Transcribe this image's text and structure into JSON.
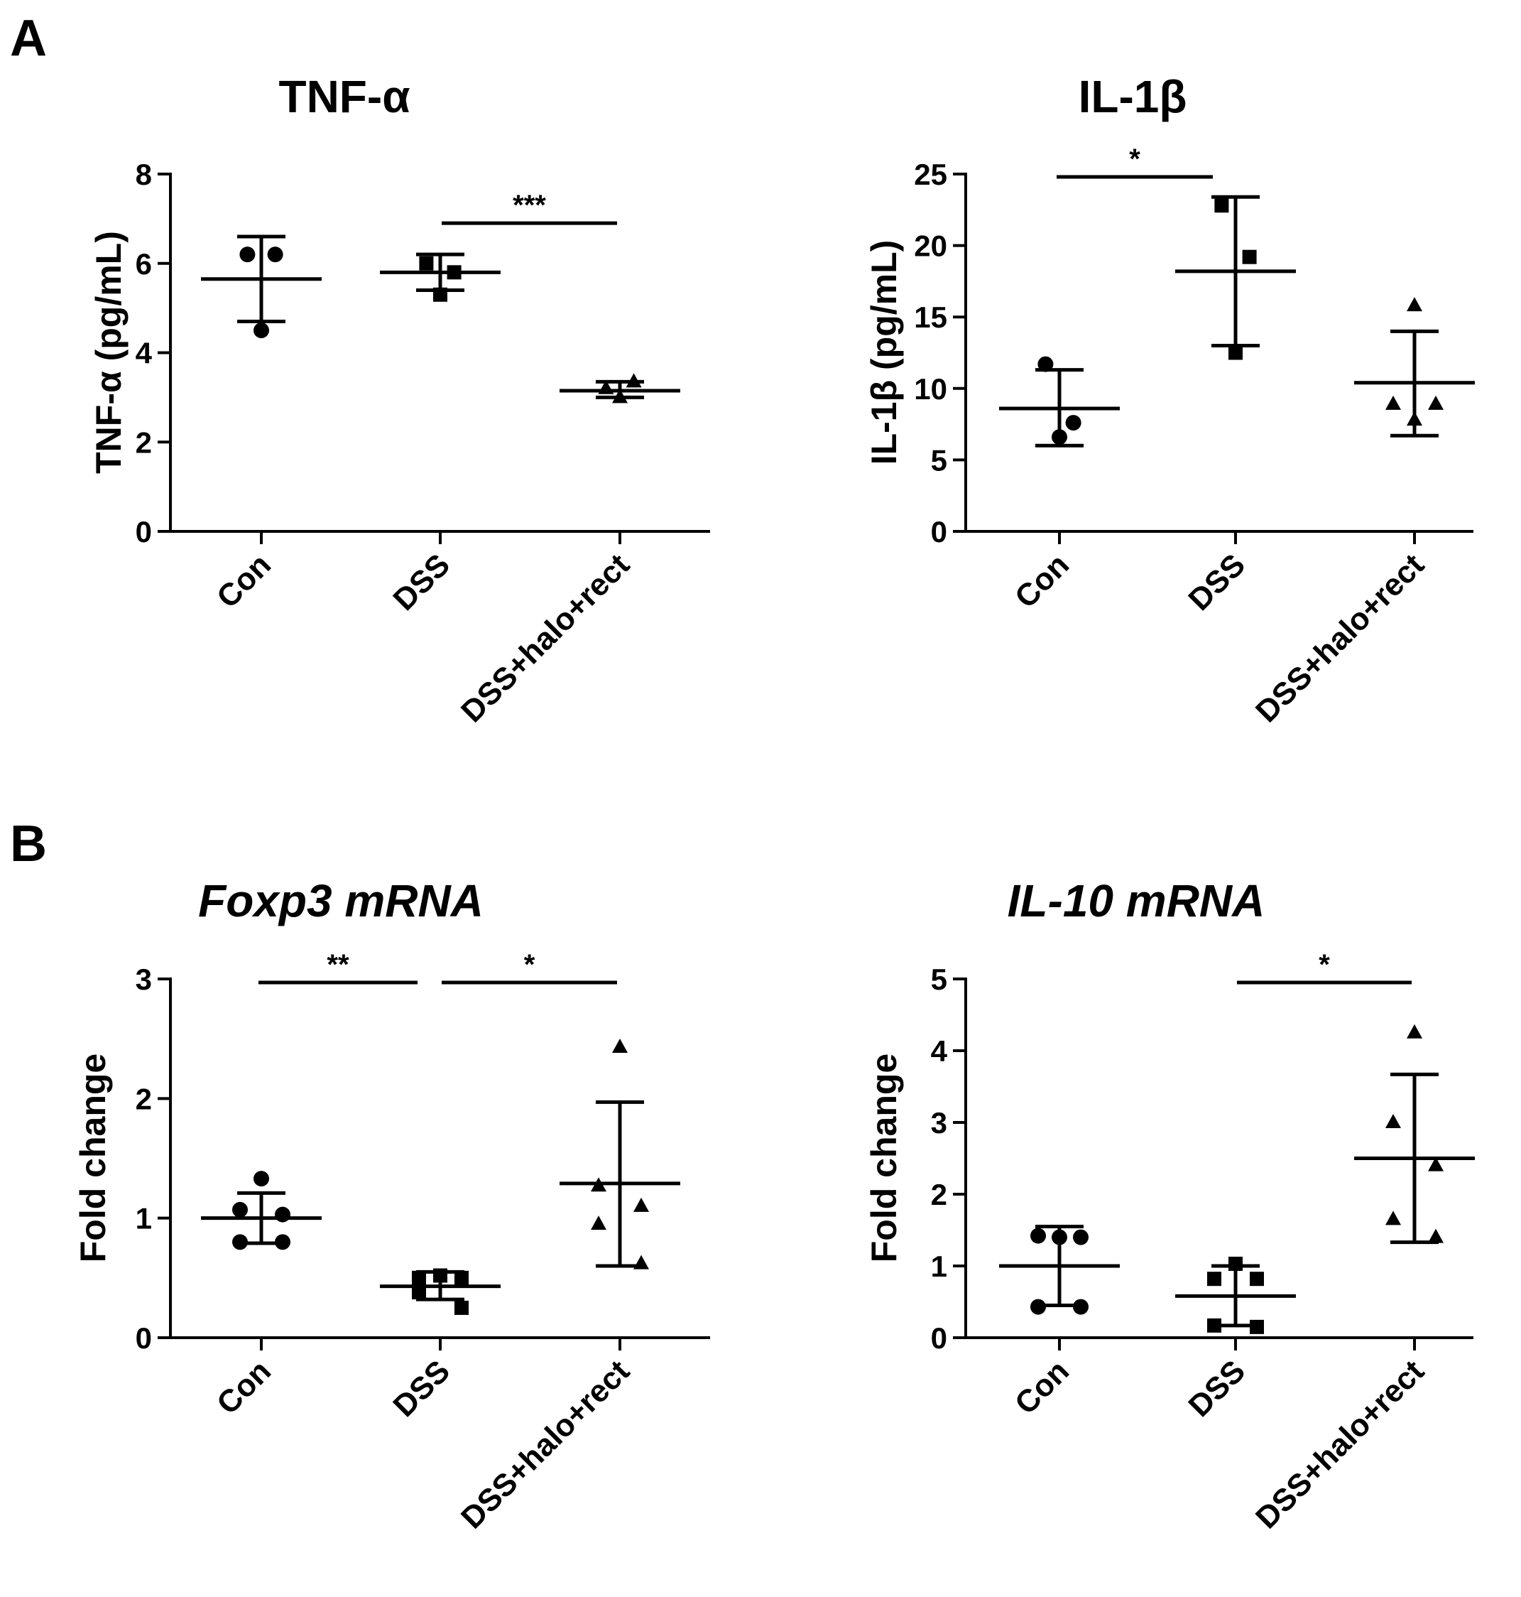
{
  "panel_labels": [
    "A",
    "B"
  ],
  "chart_data": [
    {
      "type": "scatter",
      "panel": "A",
      "title": "TNF-α",
      "title_italic": false,
      "ylabel": "TNF-α (pg/mL)",
      "ylim": [
        0,
        8
      ],
      "yticks": [
        0,
        2,
        4,
        6,
        8
      ],
      "categories": [
        "Con",
        "DSS",
        "DSS+halo+rect"
      ],
      "markers": [
        "circle",
        "square",
        "triangle"
      ],
      "groups": [
        {
          "name": "Con",
          "points": [
            6.2,
            6.2,
            4.5
          ],
          "mean": 5.65,
          "err_high": 6.6,
          "err_low": 4.7
        },
        {
          "name": "DSS",
          "points": [
            6.0,
            5.8,
            5.3
          ],
          "mean": 5.8,
          "err_high": 6.2,
          "err_low": 5.4
        },
        {
          "name": "DSS+halo+rect",
          "points": [
            3.2,
            3.35,
            3.0
          ],
          "mean": 3.15,
          "err_high": 3.35,
          "err_low": 3.0
        }
      ],
      "significance": [
        {
          "from": 1,
          "to": 2,
          "label": "***",
          "y": 6.9
        }
      ]
    },
    {
      "type": "scatter",
      "panel": "A",
      "title": "IL-1β",
      "title_italic": false,
      "ylabel": "IL-1β (pg/mL)",
      "ylim": [
        0,
        25
      ],
      "yticks": [
        0,
        5,
        10,
        15,
        20,
        25
      ],
      "categories": [
        "Con",
        "DSS",
        "DSS+halo+rect"
      ],
      "markers": [
        "circle",
        "square",
        "triangle"
      ],
      "groups": [
        {
          "name": "Con",
          "points": [
            11.7,
            7.6,
            6.6
          ],
          "mean": 8.6,
          "err_high": 11.3,
          "err_low": 6.0
        },
        {
          "name": "DSS",
          "points": [
            22.8,
            19.2,
            12.5
          ],
          "mean": 18.2,
          "err_high": 23.4,
          "err_low": 13.0
        },
        {
          "name": "DSS+halo+rect",
          "points": [
            15.8,
            8.9,
            8.9,
            7.8
          ],
          "mean": 10.4,
          "err_high": 14.0,
          "err_low": 6.7
        }
      ],
      "significance": [
        {
          "from": 0,
          "to": 1,
          "label": "*",
          "y": 24.8
        }
      ]
    },
    {
      "type": "scatter",
      "panel": "B",
      "title": "Foxp3 mRNA",
      "title_italic": true,
      "ylabel": "Fold change",
      "ylim": [
        0,
        3
      ],
      "yticks": [
        0,
        1,
        2,
        3
      ],
      "categories": [
        "Con",
        "DSS",
        "DSS+halo+rect"
      ],
      "markers": [
        "circle",
        "square",
        "triangle"
      ],
      "groups": [
        {
          "name": "Con",
          "points": [
            1.33,
            1.07,
            1.03,
            0.8,
            0.8
          ],
          "mean": 1.0,
          "err_high": 1.21,
          "err_low": 0.79
        },
        {
          "name": "DSS",
          "points": [
            0.52,
            0.5,
            0.5,
            0.38,
            0.25
          ],
          "mean": 0.43,
          "err_high": 0.55,
          "err_low": 0.32
        },
        {
          "name": "DSS+halo+rect",
          "points": [
            2.43,
            1.27,
            1.1,
            0.95,
            0.62
          ],
          "mean": 1.29,
          "err_high": 1.97,
          "err_low": 0.6
        }
      ],
      "significance": [
        {
          "from": 0,
          "to": 1,
          "label": "**",
          "y": 2.97
        },
        {
          "from": 1,
          "to": 2,
          "label": "*",
          "y": 2.97
        }
      ]
    },
    {
      "type": "scatter",
      "panel": "B",
      "title": "IL-10 mRNA",
      "title_italic": true,
      "ylabel": "Fold change",
      "ylim": [
        0,
        5
      ],
      "yticks": [
        0,
        1,
        2,
        3,
        4,
        5
      ],
      "categories": [
        "Con",
        "DSS",
        "DSS+halo+rect"
      ],
      "markers": [
        "circle",
        "square",
        "triangle"
      ],
      "groups": [
        {
          "name": "Con",
          "points": [
            1.4,
            1.42,
            1.4,
            0.43,
            0.43
          ],
          "mean": 1.0,
          "err_high": 1.55,
          "err_low": 0.45
        },
        {
          "name": "DSS",
          "points": [
            1.03,
            0.82,
            0.82,
            0.17,
            0.15
          ],
          "mean": 0.58,
          "err_high": 1.0,
          "err_low": 0.17
        },
        {
          "name": "DSS+halo+rect",
          "points": [
            4.25,
            3.0,
            2.4,
            1.65,
            1.4
          ],
          "mean": 2.5,
          "err_high": 3.67,
          "err_low": 1.33
        }
      ],
      "significance": [
        {
          "from": 1,
          "to": 2,
          "label": "*",
          "y": 4.95
        }
      ]
    }
  ]
}
